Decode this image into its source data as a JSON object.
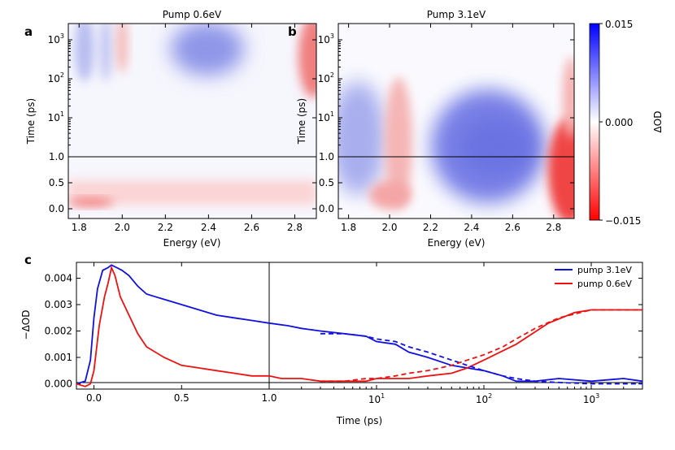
{
  "chart_data": [
    {
      "panel_label": "a",
      "type": "heatmap",
      "title": "Pump 0.6eV",
      "xlabel": "Energy (eV)",
      "ylabel": "Time (ps)",
      "xlim": [
        1.75,
        2.9
      ],
      "x_ticks": [
        "1.8",
        "2.0",
        "2.2",
        "2.4",
        "2.6",
        "2.8"
      ],
      "y_ticks_linear": [
        "0.0",
        "0.5",
        "1.0"
      ],
      "y_ticks_log": [
        "10",
        "10",
        "10"
      ],
      "y_ticks_log_exp": [
        "1",
        "2",
        "3"
      ],
      "y_split": 1.0,
      "features": [
        {
          "energy": 1.83,
          "time": 0.05,
          "dOD": -0.006
        },
        {
          "energy": 2.05,
          "time": 300,
          "dOD": -0.004
        },
        {
          "energy": 2.55,
          "time": 1000,
          "dOD": 0.005
        },
        {
          "energy": 2.88,
          "time": 1000,
          "dOD": -0.006
        }
      ]
    },
    {
      "panel_label": "b",
      "type": "heatmap",
      "title": "Pump 3.1eV",
      "xlabel": "Energy (eV)",
      "ylabel": "Time (ps)",
      "xlim": [
        1.75,
        2.9
      ],
      "x_ticks": [
        "1.8",
        "2.0",
        "2.2",
        "2.4",
        "2.6",
        "2.8"
      ],
      "y_ticks_linear": [
        "0.0",
        "0.5",
        "1.0"
      ],
      "y_ticks_log": [
        "10",
        "10",
        "10"
      ],
      "y_ticks_log_exp": [
        "1",
        "2",
        "3"
      ],
      "y_split": 1.0,
      "features": [
        {
          "energy": 1.85,
          "time": 3,
          "dOD": 0.004
        },
        {
          "energy": 2.05,
          "time": 1,
          "dOD": -0.004
        },
        {
          "energy": 2.55,
          "time": 3,
          "dOD": 0.006
        },
        {
          "energy": 2.85,
          "time": 0.5,
          "dOD": -0.012
        }
      ]
    },
    {
      "type": "colorbar",
      "label": "ΔOD",
      "range": [
        -0.015,
        0.015
      ],
      "ticks": [
        "0.015",
        "0.000",
        "−0.015"
      ],
      "colors": {
        "positive": "#0000ff",
        "zero": "#ffffff",
        "negative": "#ff0000"
      }
    },
    {
      "panel_label": "c",
      "type": "line",
      "xlabel": "Time (ps)",
      "ylabel": "−ΔOD",
      "ylim": [
        -0.0002,
        0.0046
      ],
      "xlim_linear": [
        -0.1,
        1.0
      ],
      "xlim_log": [
        1.0,
        3000
      ],
      "x_ticks_linear": [
        "0.0",
        "0.5",
        "1.0"
      ],
      "x_ticks_log": [
        "10",
        "10",
        "10"
      ],
      "x_ticks_log_exp": [
        "1",
        "2",
        "3"
      ],
      "y_ticks": [
        "0.000",
        "0.001",
        "0.002",
        "0.003",
        "0.004"
      ],
      "series": [
        {
          "name": "pump 3.1eV",
          "color": "#1010e0",
          "x": [
            -0.1,
            -0.05,
            -0.02,
            0.0,
            0.02,
            0.05,
            0.08,
            0.1,
            0.13,
            0.16,
            0.2,
            0.25,
            0.3,
            0.35,
            0.4,
            0.5,
            0.6,
            0.7,
            0.8,
            0.9,
            1.0,
            1.5,
            2,
            3,
            5,
            8,
            10,
            15,
            20,
            30,
            50,
            70,
            100,
            150,
            200,
            300,
            500,
            1000,
            2000,
            3000
          ],
          "y": [
            0.0,
            0.0001,
            0.0009,
            0.0025,
            0.0036,
            0.0043,
            0.0044,
            0.0045,
            0.0044,
            0.0043,
            0.0041,
            0.0037,
            0.0034,
            0.0033,
            0.0032,
            0.003,
            0.0028,
            0.0026,
            0.0025,
            0.0024,
            0.0023,
            0.0022,
            0.0021,
            0.002,
            0.0019,
            0.0018,
            0.0016,
            0.0015,
            0.0012,
            0.001,
            0.0007,
            0.0006,
            0.0005,
            0.0003,
            0.0001,
            0.0001,
            0.0002,
            0.0001,
            0.0002,
            0.0001
          ]
        },
        {
          "name": "pump 0.6eV",
          "color": "#ee1111",
          "x": [
            -0.1,
            -0.05,
            -0.02,
            0.0,
            0.03,
            0.06,
            0.08,
            0.1,
            0.12,
            0.15,
            0.2,
            0.25,
            0.3,
            0.4,
            0.5,
            0.6,
            0.7,
            0.8,
            0.9,
            1.0,
            1.3,
            2,
            3,
            5,
            8,
            10,
            15,
            20,
            30,
            50,
            70,
            100,
            200,
            400,
            700,
            1000,
            2000,
            3000
          ],
          "y": [
            0.0,
            -0.0001,
            0.0,
            0.0005,
            0.0022,
            0.0033,
            0.0038,
            0.0044,
            0.0041,
            0.0033,
            0.0026,
            0.0019,
            0.0014,
            0.001,
            0.0007,
            0.0006,
            0.0005,
            0.0004,
            0.0003,
            0.0003,
            0.0002,
            0.0002,
            0.0001,
            0.0001,
            0.0001,
            0.0002,
            0.0002,
            0.0002,
            0.0003,
            0.0004,
            0.0006,
            0.0009,
            0.0015,
            0.0023,
            0.0027,
            0.0028,
            0.0028,
            0.0028
          ]
        }
      ],
      "fits": [
        {
          "of": "pump 3.1eV",
          "color": "#1010e0",
          "x": [
            3,
            5,
            8,
            10,
            15,
            20,
            30,
            50,
            70,
            100,
            150,
            200,
            300,
            500,
            1000,
            3000
          ],
          "y": [
            0.0019,
            0.0019,
            0.0018,
            0.0017,
            0.0016,
            0.0014,
            0.0012,
            0.0009,
            0.0007,
            0.0005,
            0.0003,
            0.0002,
            0.0001,
            5e-05,
            0.0,
            0.0
          ]
        },
        {
          "of": "pump 0.6eV",
          "color": "#ee1111",
          "x": [
            3,
            5,
            8,
            10,
            15,
            20,
            30,
            50,
            70,
            100,
            150,
            200,
            300,
            500,
            1000,
            3000
          ],
          "y": [
            0.0001,
            0.0001,
            0.0002,
            0.0002,
            0.0003,
            0.0004,
            0.0005,
            0.0007,
            0.0009,
            0.0011,
            0.0014,
            0.0017,
            0.0021,
            0.0025,
            0.0028,
            0.0028
          ]
        }
      ]
    }
  ]
}
